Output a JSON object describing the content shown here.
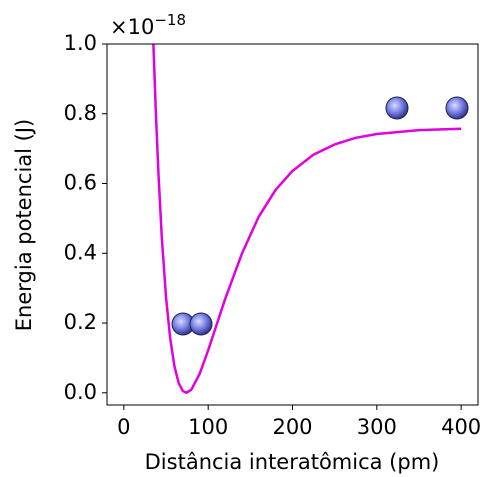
{
  "chart_data": {
    "type": "line",
    "xlabel": "Distância interatômica (pm)",
    "ylabel": "Energia potencial (J)",
    "y_multiplier": "×10",
    "y_exponent": "−18",
    "x": [
      35,
      38,
      41,
      45,
      50,
      55,
      60,
      65,
      70,
      74,
      80,
      90,
      100,
      110,
      120,
      140,
      160,
      180,
      200,
      225,
      250,
      275,
      300,
      350,
      400
    ],
    "series": [
      {
        "name": null,
        "color": "#e000e0",
        "values": [
          1.0,
          0.8,
          0.63,
          0.445,
          0.274,
          0.155,
          0.076,
          0.028,
          0.005,
          0,
          0.009,
          0.055,
          0.122,
          0.195,
          0.268,
          0.399,
          0.505,
          0.582,
          0.636,
          0.683,
          0.712,
          0.731,
          0.742,
          0.753,
          0.757
        ]
      }
    ],
    "xlim": [
      -20,
      420
    ],
    "xticks": [
      0,
      100,
      200,
      300,
      400
    ],
    "ylim": [
      -0.035,
      1.0
    ],
    "yticks": [
      {
        "value": 0,
        "label": "0.0"
      },
      0.2,
      0.4,
      0.6,
      0.8,
      {
        "value": 1.0,
        "label": "1.0"
      }
    ],
    "grid": false
  }
}
